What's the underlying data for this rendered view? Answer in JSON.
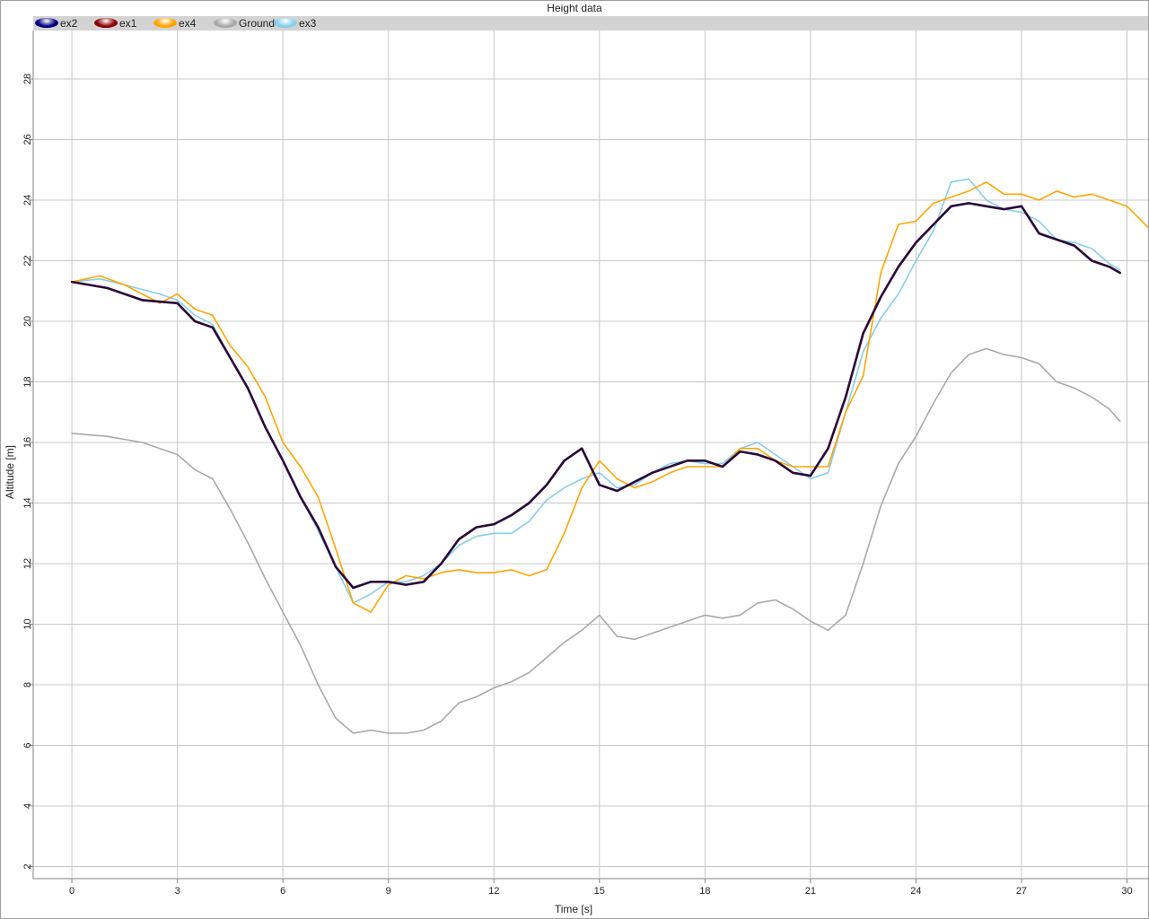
{
  "chart_data": {
    "type": "line",
    "title": "Height data",
    "xlabel": "Time [s]",
    "ylabel": "Altitude [m]",
    "xlim": [
      -1.1,
      30.6
    ],
    "ylim": [
      1.6,
      29.6
    ],
    "xticks": [
      0,
      3,
      6,
      9,
      12,
      15,
      18,
      21,
      24,
      27,
      30
    ],
    "yticks": [
      2,
      4,
      6,
      8,
      10,
      12,
      14,
      16,
      18,
      20,
      22,
      24,
      26,
      28
    ],
    "grid": true,
    "legend_position": "top",
    "series": [
      {
        "name": "ex2",
        "color": "#000080",
        "x": [
          0,
          1,
          2,
          3,
          3.5,
          4,
          4.5,
          5,
          5.5,
          6,
          6.5,
          7,
          7.5,
          8,
          8.5,
          9,
          9.5,
          10,
          10.5,
          11,
          11.5,
          12,
          12.5,
          13,
          13.5,
          14,
          14.5,
          15,
          15.5,
          16,
          16.5,
          17,
          17.5,
          18,
          18.5,
          19,
          19.5,
          20,
          20.5,
          21,
          21.5,
          22,
          22.5,
          23,
          23.5,
          24,
          24.5,
          25,
          25.5,
          26,
          26.5,
          27,
          27.5,
          28,
          28.5,
          29,
          29.5,
          29.8
        ],
        "y": [
          21.3,
          21.1,
          20.7,
          20.6,
          20.0,
          19.8,
          18.8,
          17.8,
          16.5,
          15.4,
          14.2,
          13.2,
          11.9,
          11.2,
          11.4,
          11.4,
          11.3,
          11.4,
          12.0,
          12.8,
          13.2,
          13.3,
          13.6,
          14.0,
          14.6,
          15.4,
          15.8,
          14.6,
          14.4,
          14.7,
          15.0,
          15.2,
          15.4,
          15.4,
          15.2,
          15.7,
          15.6,
          15.4,
          15.0,
          14.9,
          15.8,
          17.5,
          19.6,
          20.8,
          21.8,
          22.6,
          23.2,
          23.8,
          23.9,
          23.8,
          23.7,
          23.8,
          22.9,
          22.7,
          22.5,
          22.0,
          21.8,
          21.6
        ]
      },
      {
        "name": "ex1",
        "color": "#8b0000",
        "x": [
          0,
          1,
          2,
          3,
          3.5,
          4,
          4.5,
          5,
          5.5,
          6,
          6.5,
          7,
          7.5,
          8,
          8.5,
          9,
          9.5,
          10,
          10.5,
          11,
          11.5,
          12,
          12.5,
          13,
          13.5,
          14,
          14.5,
          15,
          15.5,
          16,
          16.5,
          17,
          17.5,
          18,
          18.5,
          19,
          19.5,
          20,
          20.5,
          21,
          21.5,
          22,
          22.5,
          23,
          23.5,
          24,
          24.5,
          25,
          25.5,
          26,
          26.5,
          27,
          27.5,
          28,
          28.5,
          29,
          29.5,
          29.8
        ],
        "y": [
          21.3,
          21.1,
          20.7,
          20.6,
          20.0,
          19.8,
          18.8,
          17.8,
          16.5,
          15.4,
          14.2,
          13.2,
          11.9,
          11.2,
          11.4,
          11.4,
          11.3,
          11.4,
          12.0,
          12.8,
          13.2,
          13.3,
          13.6,
          14.0,
          14.6,
          15.4,
          15.8,
          14.6,
          14.4,
          14.7,
          15.0,
          15.2,
          15.4,
          15.4,
          15.2,
          15.7,
          15.6,
          15.4,
          15.0,
          14.9,
          15.8,
          17.5,
          19.6,
          20.8,
          21.8,
          22.6,
          23.2,
          23.8,
          23.9,
          23.8,
          23.7,
          23.8,
          22.9,
          22.7,
          22.5,
          22.0,
          21.8,
          21.6
        ]
      },
      {
        "name": "ex4",
        "color": "#ffa500",
        "x": [
          0,
          0.8,
          1.5,
          2.5,
          3,
          3.5,
          4,
          4.5,
          5,
          5.5,
          6,
          6.5,
          7,
          7.5,
          8,
          8.5,
          9,
          9.5,
          10,
          10.5,
          11,
          11.5,
          12,
          12.5,
          13,
          13.5,
          14,
          14.5,
          15,
          15.5,
          16,
          16.5,
          17,
          17.5,
          18,
          18.5,
          19,
          19.5,
          20,
          20.5,
          21,
          21.5,
          22,
          22.5,
          23,
          23.5,
          24,
          24.5,
          25,
          25.5,
          26,
          26.5,
          27,
          27.5,
          28,
          28.5,
          29,
          29.5,
          30,
          30.6
        ],
        "y": [
          21.3,
          21.5,
          21.2,
          20.6,
          20.9,
          20.4,
          20.2,
          19.2,
          18.5,
          17.5,
          16.0,
          15.2,
          14.2,
          12.5,
          10.7,
          10.4,
          11.3,
          11.6,
          11.5,
          11.7,
          11.8,
          11.7,
          11.7,
          11.8,
          11.6,
          11.8,
          13.0,
          14.5,
          15.4,
          14.8,
          14.5,
          14.7,
          15.0,
          15.2,
          15.2,
          15.2,
          15.8,
          15.8,
          15.4,
          15.2,
          15.2,
          15.2,
          17.0,
          18.2,
          21.6,
          23.2,
          23.3,
          23.9,
          24.1,
          24.3,
          24.6,
          24.2,
          24.2,
          24.0,
          24.3,
          24.1,
          24.2,
          24.0,
          23.8,
          23.1
        ]
      },
      {
        "name": "Ground",
        "color": "#a9a9a9",
        "x": [
          0,
          1,
          2,
          2.5,
          3,
          3.5,
          4,
          4.5,
          5,
          5.5,
          6,
          6.5,
          7,
          7.5,
          8,
          8.5,
          9,
          9.5,
          10,
          10.5,
          11,
          11.5,
          12,
          12.5,
          13,
          13.5,
          14,
          14.5,
          15,
          15.5,
          16,
          16.5,
          17,
          17.5,
          18,
          18.5,
          19,
          19.5,
          20,
          20.5,
          21,
          21.5,
          22,
          22.5,
          23,
          23.5,
          24,
          24.5,
          25,
          25.5,
          26,
          26.5,
          27,
          27.5,
          28,
          28.5,
          29,
          29.5,
          29.8
        ],
        "y": [
          16.3,
          16.2,
          16.0,
          15.8,
          15.6,
          15.1,
          14.8,
          13.8,
          12.7,
          11.5,
          10.4,
          9.3,
          8.0,
          6.9,
          6.4,
          6.5,
          6.4,
          6.4,
          6.5,
          6.8,
          7.4,
          7.6,
          7.9,
          8.1,
          8.4,
          8.9,
          9.4,
          9.8,
          10.3,
          9.6,
          9.5,
          9.7,
          9.9,
          10.1,
          10.3,
          10.2,
          10.3,
          10.7,
          10.8,
          10.5,
          10.1,
          9.8,
          10.3,
          12.0,
          13.9,
          15.3,
          16.2,
          17.3,
          18.3,
          18.9,
          19.1,
          18.9,
          18.8,
          18.6,
          18.0,
          17.8,
          17.5,
          17.1,
          16.7
        ]
      },
      {
        "name": "ex3",
        "color": "#87ceeb",
        "x": [
          0,
          0.8,
          1.5,
          2.5,
          3,
          3.5,
          4,
          4.5,
          5,
          5.5,
          6,
          6.5,
          7,
          7.5,
          8,
          8.5,
          9,
          9.5,
          10,
          10.5,
          11,
          11.5,
          12,
          12.5,
          13,
          13.5,
          14,
          14.5,
          15,
          15.5,
          16,
          16.5,
          17,
          17.5,
          18,
          18.5,
          19,
          19.5,
          20,
          20.5,
          21,
          21.5,
          22,
          22.5,
          23,
          23.5,
          24,
          24.5,
          25,
          25.5,
          26,
          26.5,
          27,
          27.5,
          28,
          28.5,
          29,
          29.5,
          29.8
        ],
        "y": [
          21.3,
          21.4,
          21.2,
          20.9,
          20.7,
          20.2,
          19.9,
          18.8,
          17.8,
          16.5,
          15.4,
          14.2,
          13.1,
          11.9,
          10.7,
          11.0,
          11.4,
          11.4,
          11.6,
          12.0,
          12.6,
          12.9,
          13.0,
          13.0,
          13.4,
          14.1,
          14.5,
          14.8,
          15.0,
          14.5,
          14.6,
          15.0,
          15.3,
          15.4,
          15.3,
          15.3,
          15.8,
          16.0,
          15.6,
          15.2,
          14.8,
          15.0,
          17.0,
          19.0,
          20.1,
          20.9,
          22.0,
          23.0,
          24.6,
          24.7,
          24.0,
          23.7,
          23.6,
          23.3,
          22.7,
          22.6,
          22.4,
          21.9,
          21.7
        ]
      }
    ]
  }
}
